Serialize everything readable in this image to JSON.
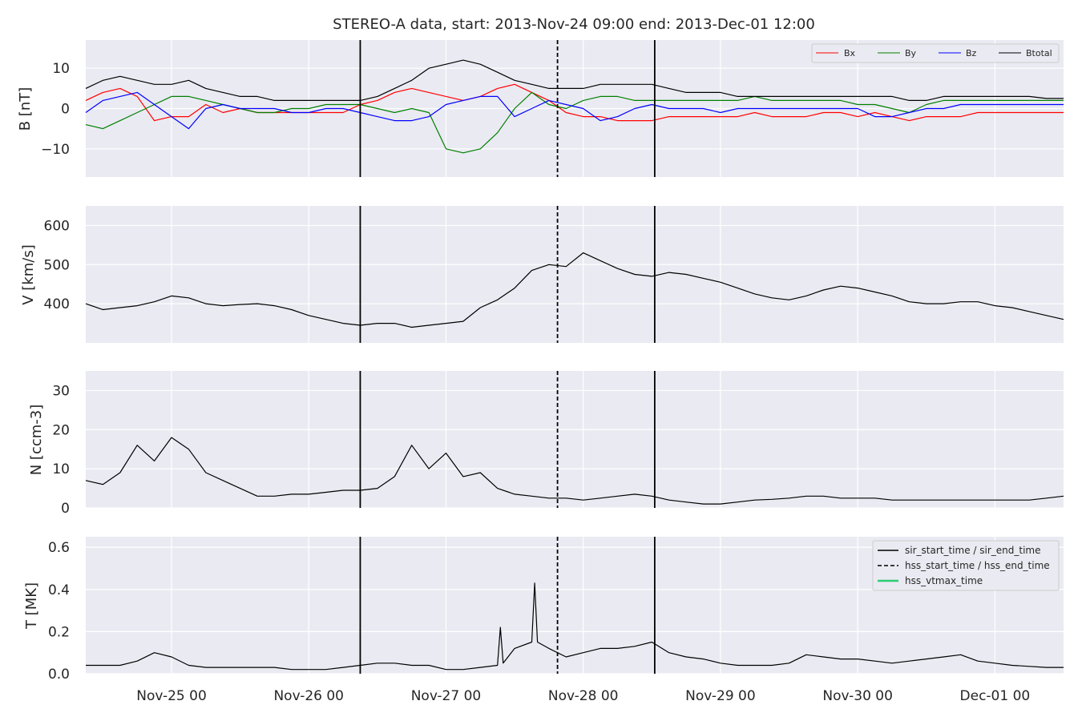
{
  "title": "STEREO-A data, start: 2013-Nov-24 09:00  end: 2013-Dec-01 12:00",
  "x_ticks": [
    "Nov-25 00",
    "Nov-26 00",
    "Nov-27 00",
    "Nov-28 00",
    "Nov-29 00",
    "Nov-30 00",
    "Dec-01 00"
  ],
  "x_tick_hours": [
    15,
    39,
    63,
    87,
    111,
    135,
    159
  ],
  "time_span_hours": 171,
  "colors": {
    "axes_bg": "#eaeaf2",
    "grid": "#ffffff",
    "bx": "#ff0000",
    "by": "#008000",
    "bz": "#0000ff",
    "btotal": "#000000",
    "plasma": "#000000",
    "event_lines": "#000000",
    "hss_vtmax": "#2ecc71"
  },
  "events": {
    "sir_start_hour": 48,
    "hss_start_hour": 82.5,
    "sir_end_hour": 99.5
  },
  "legend_top": {
    "items": [
      "Bx",
      "By",
      "Bz",
      "Btotal"
    ],
    "placement": "top-right"
  },
  "legend_bottom": {
    "items": [
      "sir_start_time / sir_end_time",
      "hss_start_time / hss_end_time",
      "hss_vtmax_time"
    ],
    "placement": "top-right"
  },
  "chart_data": [
    {
      "type": "line",
      "ylabel": "B [nT]",
      "ylim": [
        -17,
        17
      ],
      "yticks": [
        10,
        0,
        -10
      ],
      "ytick_labels": [
        "10",
        "0",
        "−10"
      ],
      "grid": true,
      "series": [
        {
          "name": "Bx",
          "x": [
            0,
            3,
            6,
            9,
            12,
            15,
            18,
            21,
            24,
            27,
            30,
            33,
            36,
            39,
            42,
            45,
            48,
            51,
            54,
            57,
            60,
            63,
            66,
            69,
            72,
            75,
            78,
            81,
            84,
            87,
            90,
            93,
            96,
            99,
            102,
            105,
            108,
            111,
            114,
            117,
            120,
            123,
            126,
            129,
            132,
            135,
            138,
            141,
            144,
            147,
            150,
            153,
            156,
            159,
            162,
            165,
            168,
            171
          ],
          "y": [
            2,
            4,
            5,
            3,
            -3,
            -2,
            -2,
            1,
            -1,
            0,
            -1,
            -1,
            -1,
            -1,
            -1,
            -1,
            1,
            2,
            4,
            5,
            4,
            3,
            2,
            3,
            5,
            6,
            4,
            2,
            -1,
            -2,
            -2,
            -3,
            -3,
            -3,
            -2,
            -2,
            -2,
            -2,
            -2,
            -1,
            -2,
            -2,
            -2,
            -1,
            -1,
            -2,
            -1,
            -2,
            -3,
            -2,
            -2,
            -2,
            -1,
            -1,
            -1,
            -1,
            -1,
            -1
          ]
        },
        {
          "name": "By",
          "x": [
            0,
            3,
            6,
            9,
            12,
            15,
            18,
            21,
            24,
            27,
            30,
            33,
            36,
            39,
            42,
            45,
            48,
            51,
            54,
            57,
            60,
            63,
            66,
            69,
            72,
            75,
            78,
            81,
            84,
            87,
            90,
            93,
            96,
            99,
            102,
            105,
            108,
            111,
            114,
            117,
            120,
            123,
            126,
            129,
            132,
            135,
            138,
            141,
            144,
            147,
            150,
            153,
            156,
            159,
            162,
            165,
            168,
            171
          ],
          "y": [
            -4,
            -5,
            -3,
            -1,
            1,
            3,
            3,
            2,
            1,
            0,
            -1,
            -1,
            0,
            0,
            1,
            1,
            1,
            0,
            -1,
            0,
            -1,
            -10,
            -11,
            -10,
            -6,
            0,
            4,
            1,
            0,
            2,
            3,
            3,
            2,
            2,
            2,
            2,
            2,
            2,
            2,
            3,
            2,
            2,
            2,
            2,
            2,
            1,
            1,
            0,
            -1,
            1,
            2,
            2,
            2,
            2,
            2,
            2,
            2,
            2
          ]
        },
        {
          "name": "Bz",
          "x": [
            0,
            3,
            6,
            9,
            12,
            15,
            18,
            21,
            24,
            27,
            30,
            33,
            36,
            39,
            42,
            45,
            48,
            51,
            54,
            57,
            60,
            63,
            66,
            69,
            72,
            75,
            78,
            81,
            84,
            87,
            90,
            93,
            96,
            99,
            102,
            105,
            108,
            111,
            114,
            117,
            120,
            123,
            126,
            129,
            132,
            135,
            138,
            141,
            144,
            147,
            150,
            153,
            156,
            159,
            162,
            165,
            168,
            171
          ],
          "y": [
            -1,
            2,
            3,
            4,
            1,
            -2,
            -5,
            0,
            1,
            0,
            0,
            0,
            -1,
            -1,
            0,
            0,
            -1,
            -2,
            -3,
            -3,
            -2,
            1,
            2,
            3,
            3,
            -2,
            0,
            2,
            1,
            0,
            -3,
            -2,
            0,
            1,
            0,
            0,
            0,
            -1,
            0,
            0,
            0,
            0,
            0,
            0,
            0,
            0,
            -2,
            -2,
            -1,
            0,
            0,
            1,
            1,
            1,
            1,
            1,
            1,
            1
          ]
        },
        {
          "name": "Btotal",
          "x": [
            0,
            3,
            6,
            9,
            12,
            15,
            18,
            21,
            24,
            27,
            30,
            33,
            36,
            39,
            42,
            45,
            48,
            51,
            54,
            57,
            60,
            63,
            66,
            69,
            72,
            75,
            78,
            81,
            84,
            87,
            90,
            93,
            96,
            99,
            102,
            105,
            108,
            111,
            114,
            117,
            120,
            123,
            126,
            129,
            132,
            135,
            138,
            141,
            144,
            147,
            150,
            153,
            156,
            159,
            162,
            165,
            168,
            171
          ],
          "y": [
            5,
            7,
            8,
            7,
            6,
            6,
            7,
            5,
            4,
            3,
            3,
            2,
            2,
            2,
            2,
            2,
            2,
            3,
            5,
            7,
            10,
            11,
            12,
            11,
            9,
            7,
            6,
            5,
            5,
            5,
            6,
            6,
            6,
            6,
            5,
            4,
            4,
            4,
            3,
            3,
            3,
            3,
            3,
            3,
            3,
            3,
            3,
            3,
            2,
            2,
            3,
            3,
            3,
            3,
            3,
            3,
            2.5,
            2.5
          ]
        }
      ]
    },
    {
      "type": "line",
      "ylabel": "V [km/s]",
      "ylim": [
        300,
        650
      ],
      "yticks": [
        600,
        500,
        400
      ],
      "ytick_labels": [
        "600",
        "500",
        "400"
      ],
      "grid": true,
      "series": [
        {
          "x": [
            0,
            3,
            6,
            9,
            12,
            15,
            18,
            21,
            24,
            27,
            30,
            33,
            36,
            39,
            42,
            45,
            48,
            51,
            54,
            57,
            60,
            63,
            66,
            69,
            72,
            75,
            78,
            81,
            84,
            87,
            90,
            93,
            96,
            99,
            102,
            105,
            108,
            111,
            114,
            117,
            120,
            123,
            126,
            129,
            132,
            135,
            138,
            141,
            144,
            147,
            150,
            153,
            156,
            159,
            162,
            165,
            168,
            171
          ],
          "y": [
            400,
            385,
            390,
            395,
            405,
            420,
            415,
            400,
            395,
            398,
            400,
            395,
            385,
            370,
            360,
            350,
            345,
            350,
            350,
            340,
            345,
            350,
            355,
            390,
            410,
            440,
            485,
            500,
            495,
            530,
            510,
            490,
            475,
            470,
            480,
            475,
            465,
            455,
            440,
            425,
            415,
            410,
            420,
            435,
            445,
            440,
            430,
            420,
            405,
            400,
            400,
            405,
            405,
            395,
            390,
            380,
            370,
            360
          ]
        }
      ]
    },
    {
      "type": "line",
      "ylabel": "N [ccm-3]",
      "ylim": [
        0,
        35
      ],
      "yticks": [
        30,
        20,
        10,
        0
      ],
      "ytick_labels": [
        "30",
        "20",
        "10",
        "0"
      ],
      "grid": true,
      "series": [
        {
          "x": [
            0,
            3,
            6,
            9,
            12,
            15,
            18,
            21,
            24,
            27,
            30,
            33,
            36,
            39,
            42,
            45,
            48,
            51,
            54,
            57,
            60,
            63,
            66,
            69,
            72,
            75,
            78,
            81,
            84,
            87,
            90,
            93,
            96,
            99,
            102,
            105,
            108,
            111,
            114,
            117,
            120,
            123,
            126,
            129,
            132,
            135,
            138,
            141,
            144,
            147,
            150,
            153,
            156,
            159,
            162,
            165,
            168,
            171
          ],
          "y": [
            7,
            6,
            9,
            16,
            12,
            18,
            15,
            9,
            7,
            5,
            3,
            3,
            3.5,
            3.5,
            4,
            4.5,
            4.5,
            5,
            8,
            16,
            10,
            14,
            8,
            9,
            5,
            3.5,
            3,
            2.5,
            2.5,
            2,
            2.5,
            3,
            3.5,
            3,
            2,
            1.5,
            1,
            1,
            1.5,
            2,
            2.2,
            2.5,
            3,
            3,
            2.5,
            2.5,
            2.5,
            2,
            2,
            2,
            2,
            2,
            2,
            2,
            2,
            2,
            2.5,
            3
          ]
        }
      ]
    },
    {
      "type": "line",
      "ylabel": "T [MK]",
      "ylim": [
        0,
        0.65
      ],
      "yticks": [
        0.6,
        0.4,
        0.2,
        0.0
      ],
      "ytick_labels": [
        "0.6",
        "0.4",
        "0.2",
        "0.0"
      ],
      "grid": true,
      "series": [
        {
          "x": [
            0,
            3,
            6,
            9,
            12,
            15,
            18,
            21,
            24,
            27,
            30,
            33,
            36,
            39,
            42,
            45,
            48,
            51,
            54,
            57,
            60,
            63,
            66,
            69,
            72,
            72.5,
            73,
            75,
            78,
            78.5,
            79,
            81,
            84,
            87,
            90,
            93,
            96,
            99,
            102,
            105,
            108,
            111,
            114,
            117,
            120,
            123,
            126,
            129,
            132,
            135,
            138,
            141,
            144,
            147,
            150,
            153,
            156,
            159,
            162,
            165,
            168,
            171
          ],
          "y": [
            0.04,
            0.04,
            0.04,
            0.06,
            0.1,
            0.08,
            0.04,
            0.03,
            0.03,
            0.03,
            0.03,
            0.03,
            0.02,
            0.02,
            0.02,
            0.03,
            0.04,
            0.05,
            0.05,
            0.04,
            0.04,
            0.02,
            0.02,
            0.03,
            0.04,
            0.22,
            0.05,
            0.12,
            0.15,
            0.43,
            0.15,
            0.12,
            0.08,
            0.1,
            0.12,
            0.12,
            0.13,
            0.15,
            0.1,
            0.08,
            0.07,
            0.05,
            0.04,
            0.04,
            0.04,
            0.05,
            0.09,
            0.08,
            0.07,
            0.07,
            0.06,
            0.05,
            0.06,
            0.07,
            0.08,
            0.09,
            0.06,
            0.05,
            0.04,
            0.035,
            0.03,
            0.03
          ]
        }
      ]
    }
  ]
}
